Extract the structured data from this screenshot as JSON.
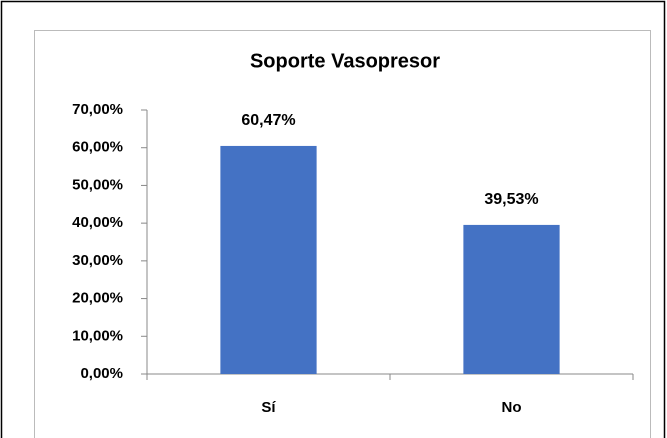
{
  "chart_data": {
    "type": "bar",
    "title": "Soporte Vasopresor",
    "categories": [
      "Sí",
      "No"
    ],
    "values": [
      60.47,
      39.53
    ],
    "value_labels": [
      "60,47%",
      "39,53%"
    ],
    "color": "#4472c4",
    "ylim": [
      0,
      70
    ],
    "yticks": [
      {
        "value": 0,
        "label": "0,00%"
      },
      {
        "value": 10,
        "label": "10,00%"
      },
      {
        "value": 20,
        "label": "20,00%"
      },
      {
        "value": 30,
        "label": "30,00%"
      },
      {
        "value": 40,
        "label": "40,00%"
      },
      {
        "value": 50,
        "label": "50,00%"
      },
      {
        "value": 60,
        "label": "60,00%"
      },
      {
        "value": 70,
        "label": "70,00%"
      }
    ],
    "grid": false
  }
}
